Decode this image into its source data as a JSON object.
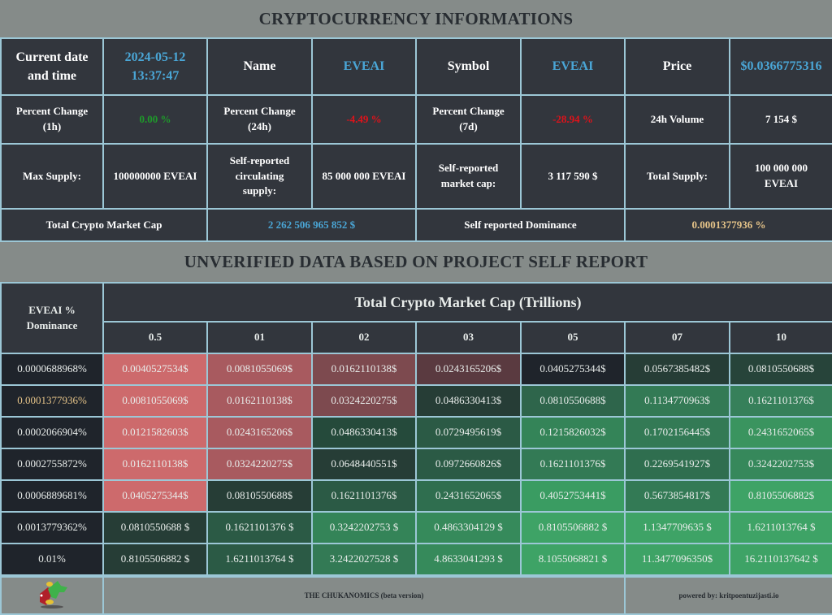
{
  "header": {
    "title": "CRYPTOCURRENCY INFORMATIONS"
  },
  "info": {
    "row1": [
      {
        "label": "Current date and time",
        "value_line1": "2024-05-12",
        "value_line2": "13:37:47"
      },
      {
        "label": "Name",
        "value": "EVEAI"
      },
      {
        "label": "Symbol",
        "value": "EVEAI"
      },
      {
        "label": "Price",
        "value": "$0.0366775316"
      }
    ],
    "row2": [
      {
        "label_line1": "Percent Change",
        "label_line2": "(1h)",
        "value": "0.00 %",
        "color": "#1e9a2a"
      },
      {
        "label_line1": "Percent Change",
        "label_line2": "(24h)",
        "value": "-4.49 %",
        "color": "#e0121a"
      },
      {
        "label_line1": "Percent Change",
        "label_line2": "(7d)",
        "value": "-28.94 %",
        "color": "#e0121a"
      },
      {
        "label": "24h Volume",
        "value": "7 154 $"
      }
    ],
    "row3": [
      {
        "label": "Max Supply:",
        "value": "100000000 EVEAI"
      },
      {
        "label_line1": "Self-reported",
        "label_line2": "circulating",
        "label_line3": "supply:",
        "value": "85 000 000 EVEAI"
      },
      {
        "label_line1": "Self-reported",
        "label_line2": "market cap:",
        "value": "3 117 590 $"
      },
      {
        "label": "Total Supply:",
        "value_line1": "100 000 000",
        "value_line2": "EVEAI"
      }
    ],
    "row4": [
      {
        "label": "Total Crypto Market Cap",
        "value": "2 262 506 965 852 $"
      },
      {
        "label": "Self reported Dominance",
        "value": "0.0001377936 %"
      }
    ]
  },
  "section2": {
    "title": "UNVERIFIED DATA BASED ON PROJECT SELF REPORT"
  },
  "matrix": {
    "corner_line1": "EVEAI %",
    "corner_line2": "Dominance",
    "group_header": "Total Crypto Market Cap (Trillions)",
    "columns": [
      "0.5",
      "01",
      "02",
      "03",
      "05",
      "07",
      "10"
    ],
    "rows": [
      {
        "dominance": "0.0000688968%",
        "highlight": false,
        "cells": [
          "0.0040527534$",
          "0.0081055069$",
          "0.0162110138$",
          "0.0243165206$",
          "0.0405275344$",
          "0.0567385482$",
          "0.0810550688$"
        ],
        "colors": [
          "#cd6a6c",
          "#a85a5f",
          "#7d4a4f",
          "#5a3a40",
          "#1f242b",
          "#263d36",
          "#27443a"
        ]
      },
      {
        "dominance": "0.0001377936%",
        "highlight": true,
        "cells": [
          "0.0081055069$",
          "0.0162110138$",
          "0.0324220275$",
          "0.0486330413$",
          "0.0810550688$",
          "0.1134770963$",
          "0.1621101376$"
        ],
        "colors": [
          "#cd6a6c",
          "#a85a5f",
          "#7d4a4f",
          "#263d36",
          "#2e654b",
          "#337a55",
          "#36805a"
        ]
      },
      {
        "dominance": "0.0002066904%",
        "highlight": false,
        "cells": [
          "0.0121582603$",
          "0.0243165206$",
          "0.0486330413$",
          "0.0729495619$",
          "0.1215826032$",
          "0.1702156445$",
          "0.2431652065$"
        ],
        "colors": [
          "#cd6a6c",
          "#a85a5f",
          "#254a3b",
          "#2b5a45",
          "#348458",
          "#337a55",
          "#3a945f"
        ]
      },
      {
        "dominance": "0.0002755872%",
        "highlight": false,
        "cells": [
          "0.0162110138$",
          "0.0324220275$",
          "0.0648440551$",
          "0.0972660826$",
          "0.1621101376$",
          "0.2269541927$",
          "0.3242202753$"
        ],
        "colors": [
          "#cd6a6c",
          "#a85a5f",
          "#263d36",
          "#2b5a45",
          "#337a55",
          "#2f6e4f",
          "#36885b"
        ]
      },
      {
        "dominance": "0.0006889681%",
        "highlight": false,
        "cells": [
          "0.0405275344$",
          "0.0810550688$",
          "0.1621101376$",
          "0.2431652065$",
          "0.4052753441$",
          "0.5673854817$",
          "0.8105506882$"
        ],
        "colors": [
          "#cd6a6c",
          "#263d36",
          "#2b5a45",
          "#2f6e4f",
          "#3a9c62",
          "#337a55",
          "#3ea366"
        ]
      },
      {
        "dominance": "0.0013779362%",
        "highlight": false,
        "cells": [
          "0.0810550688 $",
          "0.1621101376 $",
          "0.3242202753 $",
          "0.4863304129 $",
          "0.8105506882 $",
          "1.1347709635 $",
          "1.6211013764 $"
        ],
        "colors": [
          "#263d36",
          "#2b5a45",
          "#348458",
          "#368a5b",
          "#3ea366",
          "#3ea366",
          "#3ea366"
        ]
      },
      {
        "dominance": "0.01%",
        "highlight": false,
        "cells": [
          "0.8105506882 $",
          "1.6211013764 $",
          "3.2422027528 $",
          "4.8633041293 $",
          "8.1055068821 $",
          "11.3477096350$",
          "16.2110137642 $"
        ],
        "colors": [
          "#263d36",
          "#2b5a45",
          "#337a55",
          "#368a5b",
          "#3ea366",
          "#3ea366",
          "#3ea366"
        ]
      }
    ]
  },
  "footer": {
    "logo": "chukanomics-logo",
    "title": "THE CHUKANOMICS (beta version)",
    "powered_by": "powered by: kritpoentuzijasti.io"
  },
  "colors": {
    "background": "#858b89",
    "cell": "#32363d",
    "border": "#9cc7d6",
    "accent_blue": "#4aa6d6",
    "positive": "#1e9a2a",
    "negative": "#e0121a",
    "dominance_gold": "#e6c489"
  }
}
